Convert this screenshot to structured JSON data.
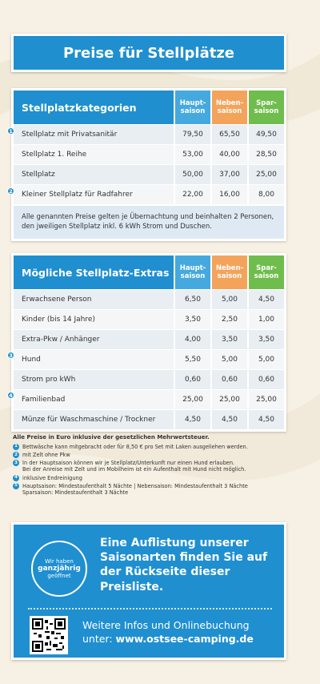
{
  "title": "Preise für Stellplätze",
  "seasons": [
    "Haupt-\nsaison",
    "Neben-\nsaison",
    "Spar-\nsaison"
  ],
  "table1": {
    "header": "Stellplatzkategorien",
    "rows": [
      {
        "label": "Stellplatz mit Privatsanitär",
        "marker": "1",
        "values": [
          "79,50",
          "65,50",
          "49,50"
        ]
      },
      {
        "label": "Stellplatz 1. Reihe",
        "marker": "",
        "values": [
          "53,00",
          "40,00",
          "28,50"
        ]
      },
      {
        "label": "Stellplatz",
        "marker": "",
        "values": [
          "50,00",
          "37,00",
          "25,00"
        ]
      },
      {
        "label": "Kleiner Stellplatz für Radfahrer",
        "marker": "2",
        "values": [
          "22,00",
          "16,00",
          "8,00"
        ]
      }
    ],
    "note": "Alle genannten Preise gelten je Übernachtung und beinhalten 2 Personen, den jweiligen Stellplatz inkl. 6 kWh Strom und Duschen."
  },
  "table2": {
    "header": "Mögliche Stellplatz-Extras",
    "rows": [
      {
        "label": "Erwachsene Person",
        "marker": "",
        "values": [
          "6,50",
          "5,00",
          "4,50"
        ]
      },
      {
        "label": "Kinder (bis 14 Jahre)",
        "marker": "",
        "values": [
          "3,50",
          "2,50",
          "1,00"
        ]
      },
      {
        "label": "Extra-Pkw / Anhänger",
        "marker": "",
        "values": [
          "4,00",
          "3,50",
          "3,50"
        ]
      },
      {
        "label": "Hund",
        "marker": "3",
        "values": [
          "5,50",
          "5,00",
          "5,00"
        ]
      },
      {
        "label": "Strom pro kWh",
        "marker": "",
        "values": [
          "0,60",
          "0,60",
          "0,60"
        ]
      },
      {
        "label": "Familienbad",
        "marker": "4",
        "values": [
          "25,00",
          "25,00",
          "25,00"
        ]
      },
      {
        "label": "Münze für Waschmaschine / Trockner",
        "marker": "",
        "values": [
          "4,50",
          "4,50",
          "4,50"
        ]
      }
    ]
  },
  "footnotes": {
    "head": "Alle Preise in Euro inklusive der gesetzlichen Mehrwertsteuer.",
    "items": [
      {
        "marker": "1",
        "text": "Bettwäsche kann mitgebracht oder für 8,50 € pro Set mit Laken ausgeliehen werden."
      },
      {
        "marker": "2",
        "text": "mit Zelt ohne Pkw"
      },
      {
        "marker": "3",
        "text": "In der Hauptsaison können wir je Stellplatz/Unterkunft nur einen Hund erlauben.\nBei der Anreise mit Zelt und im Mobilheim ist ein Aufenthalt mit Hund nicht möglich."
      },
      {
        "marker": "4",
        "text": "inklusive Endreinigung"
      },
      {
        "marker": "5",
        "text": "Hauptsaison: Mindestaufenthalt 5 Nächte | Nebensaison: Mindestaufenthalt 3 Nächte\nSparsaison: Mindestaufenthalt 3 Nächte"
      }
    ]
  },
  "info": {
    "badge_line1": "Wir haben",
    "badge_line2": "ganzjährig",
    "badge_line3": "geöffnet",
    "text": "Eine Auflistung unserer Saisonarten finden Sie auf der Rückseite dieser Preisliste.",
    "web_text": "Weitere Infos und Onlinebuchung",
    "web_prefix": "unter: ",
    "url": "www.ostsee-camping.de"
  },
  "colors": {
    "primary": "#1f8fd0",
    "haupt": "#45a9de",
    "neben": "#f4a35b",
    "spar": "#6fbd4d"
  }
}
